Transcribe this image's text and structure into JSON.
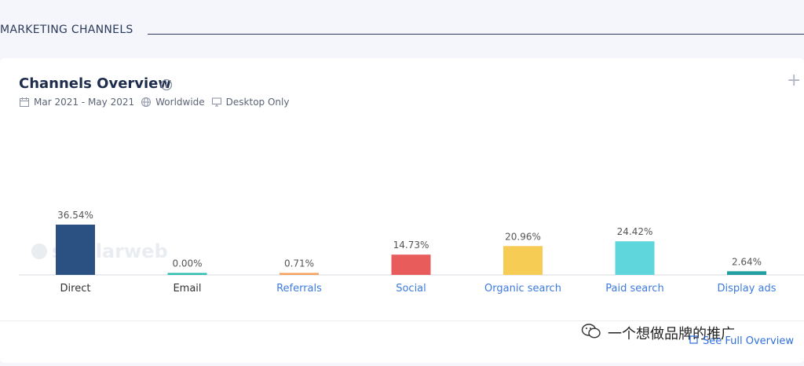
{
  "section": {
    "title": "MARKETING CHANNELS"
  },
  "card": {
    "title": "Channels Overview",
    "date_range": "Mar 2021 - May 2021",
    "region": "Worldwide",
    "device": "Desktop Only",
    "see_full_label": "See Full Overview",
    "watermark_text": "一个想做品牌的推广"
  },
  "chart_data": {
    "type": "bar",
    "categories": [
      "Direct",
      "Email",
      "Referrals",
      "Social",
      "Organic search",
      "Paid search",
      "Display ads"
    ],
    "values": [
      36.54,
      0.0,
      0.71,
      14.73,
      20.96,
      24.42,
      2.64
    ],
    "labels": [
      "36.54%",
      "0.00%",
      "0.71%",
      "14.73%",
      "20.96%",
      "24.42%",
      "2.64%"
    ],
    "colors": [
      "#2b5082",
      "#2fbfae",
      "#f7a25c",
      "#e85c5c",
      "#f6cc55",
      "#5fd5dc",
      "#1f9fa0"
    ],
    "category_colors": [
      "#333333",
      "#333333",
      "#3d7be0",
      "#3d7be0",
      "#3d7be0",
      "#3d7be0",
      "#3d7be0"
    ],
    "ylim": [
      0,
      40
    ],
    "watermark": "similarweb"
  }
}
